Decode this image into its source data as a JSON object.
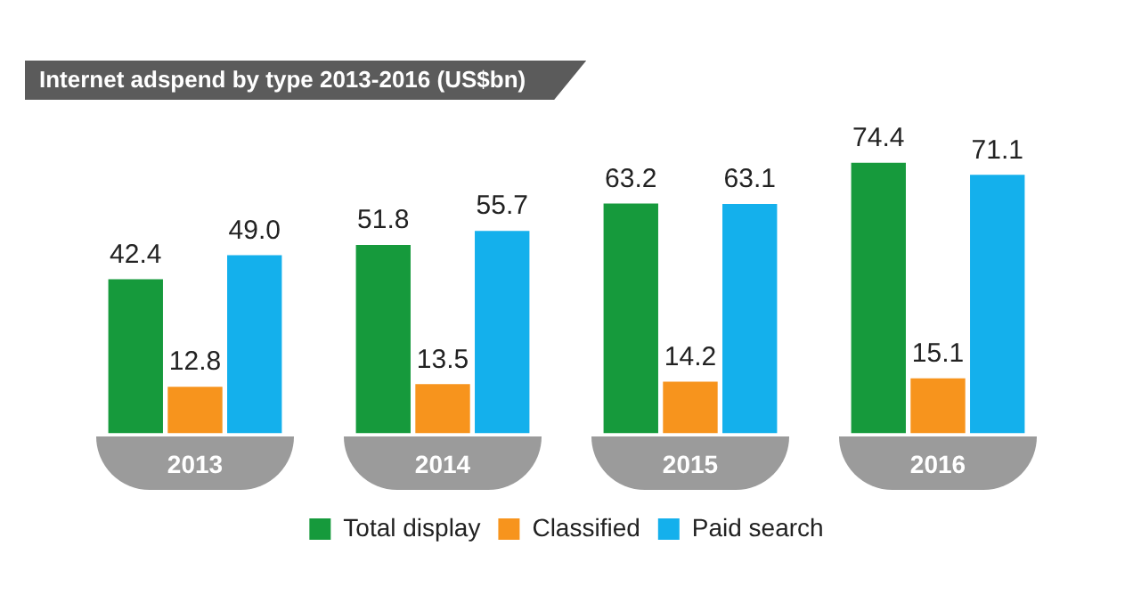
{
  "chart_data": {
    "type": "bar",
    "title": "Internet adspend by type 2013-2016 (US$bn)",
    "categories": [
      "2013",
      "2014",
      "2015",
      "2016"
    ],
    "series": [
      {
        "name": "Total display",
        "color": "#169a3c",
        "values": [
          42.4,
          51.8,
          63.2,
          74.4
        ],
        "value_labels": [
          "42.4",
          "51.8",
          "63.2",
          "74.4"
        ]
      },
      {
        "name": "Classified",
        "color": "#f7941d",
        "values": [
          12.8,
          13.5,
          14.2,
          15.1
        ],
        "value_labels": [
          "12.8",
          "13.5",
          "14.2",
          "15.1"
        ]
      },
      {
        "name": "Paid search",
        "color": "#14b0ec",
        "values": [
          49.0,
          55.7,
          63.1,
          71.1
        ],
        "value_labels": [
          "49.0",
          "55.7",
          "63.1",
          "71.1"
        ]
      }
    ],
    "legend": "bottom",
    "grid": false
  }
}
